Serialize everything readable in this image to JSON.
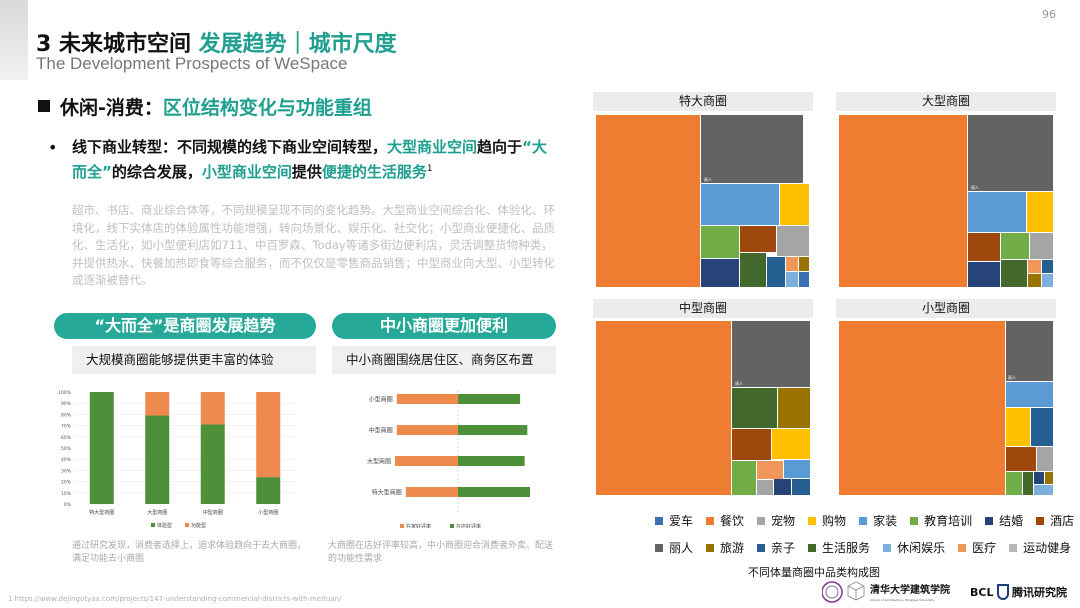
{
  "page_number": "96",
  "header": {
    "title_prefix": "3  未来城市空间 ",
    "title_accent": "发展趋势｜城市尺度",
    "subtitle": "The Development Prospects of WeSpace"
  },
  "section": {
    "title_prefix": "休闲-消费：",
    "title_accent": "区位结构变化与功能重组"
  },
  "bullet": {
    "t1": "线下商业转型：不同规模的线下商业空间转型，",
    "t2": "大型商业空间",
    "t3": "趋向于",
    "t4": "“大而全”",
    "t5": "的综合发展，",
    "t6": "小型商业空间",
    "t7": "提供",
    "t8": "便捷的生活服务",
    "sup": "1"
  },
  "paragraph": "超市、书店、商业综合体等，不同规模呈现不同的变化趋势。大型商业空间综合化、体验化、环境化，线下实体店的体验属性功能增强，转向场景化、娱乐化、社交化；小型商业便捷化、品质化、生活化，如小型便利店如711、中百罗森、Today等诸多街边便利店，灵活调整货物种类，并提供热水、快餐加热即食等综合服务，而不仅仅是零售商品销售；中型商业向大型、小型转化或逐渐被替代。",
  "left_panel": {
    "pill": "“大而全”是商圈发展趋势",
    "subtitle": "大规模商圈能够提供更丰富的体验",
    "note": "通过研究发现，消费者选择上，追求体验趋向于去大商圈，满足功能去小商圈"
  },
  "middle_panel": {
    "pill": "中小商圈更加便利",
    "subtitle": "中小商圈围绕居住区、商务区布置",
    "note": "大商圈在店好评率较高，中小商圈迎合消费者外卖、配送的功能性需求"
  },
  "chart_data": [
    {
      "type": "bar",
      "stacked": true,
      "categories": [
        "特大型商圈",
        "大型商圈",
        "中型商圈",
        "小型商圈"
      ],
      "series": [
        {
          "name": "体验型",
          "color": "#4e8f3a",
          "values": [
            100,
            79,
            71,
            24
          ]
        },
        {
          "name": "功能型",
          "color": "#ee8a4e",
          "values": [
            0,
            21,
            29,
            76
          ]
        }
      ],
      "yticks": [
        "0%",
        "10%",
        "20%",
        "30%",
        "40%",
        "50%",
        "60%",
        "70%",
        "80%",
        "90%",
        "100%"
      ],
      "ylim": [
        0,
        100
      ]
    },
    {
      "type": "bar",
      "orientation": "horizontal",
      "categories": [
        "小型商圈",
        "中型商圈",
        "大型商圈",
        "特大型商圈"
      ],
      "series": [
        {
          "name": "在家好评率",
          "color": "#ee8a4e",
          "values": [
            0.68,
            0.68,
            0.7,
            0.58
          ]
        },
        {
          "name": "在店好评率",
          "color": "#4e8f3a",
          "values": [
            0.69,
            0.77,
            0.74,
            0.8
          ]
        }
      ]
    },
    {
      "type": "heatmap",
      "charts": [
        {
          "title": "特大商圈",
          "labels": [
            "丽人"
          ]
        },
        {
          "title": "大型商圈",
          "labels": [
            "丽人"
          ]
        },
        {
          "title": "中型商圈",
          "labels": [
            "丽人"
          ]
        },
        {
          "title": "小型商圈",
          "labels": [
            "丽人"
          ]
        }
      ],
      "caption": "不同体量商圈中品类构成图"
    }
  ],
  "legend": {
    "row1": [
      {
        "label": "爱车",
        "color": "#3a6fb0"
      },
      {
        "label": "餐饮",
        "color": "#ee7d31"
      },
      {
        "label": "宠物",
        "color": "#a5a5a5"
      },
      {
        "label": "购物",
        "color": "#ffc000"
      },
      {
        "label": "家装",
        "color": "#5b9bd5"
      },
      {
        "label": "教育培训",
        "color": "#70ad47"
      },
      {
        "label": "结婚",
        "color": "#264478"
      },
      {
        "label": "酒店",
        "color": "#9e480e"
      }
    ],
    "row2": [
      {
        "label": "丽人",
        "color": "#636363"
      },
      {
        "label": "旅游",
        "color": "#997300"
      },
      {
        "label": "亲子",
        "color": "#255e91"
      },
      {
        "label": "生活服务",
        "color": "#43682b"
      },
      {
        "label": "休闲娱乐",
        "color": "#7cafdd"
      },
      {
        "label": "医疗",
        "color": "#f1975a"
      },
      {
        "label": "运动健身",
        "color": "#b7b7b7"
      }
    ]
  },
  "logos": {
    "school": "清华大学建筑学院",
    "school_en": "School of Architecture, Tsinghua University",
    "bcl": "BCL",
    "tencent": "腾讯研究院"
  },
  "footnote": "1  https://www.dejingotyaa.com/projects/147-understanding-commercial-districts-with-meituan/"
}
